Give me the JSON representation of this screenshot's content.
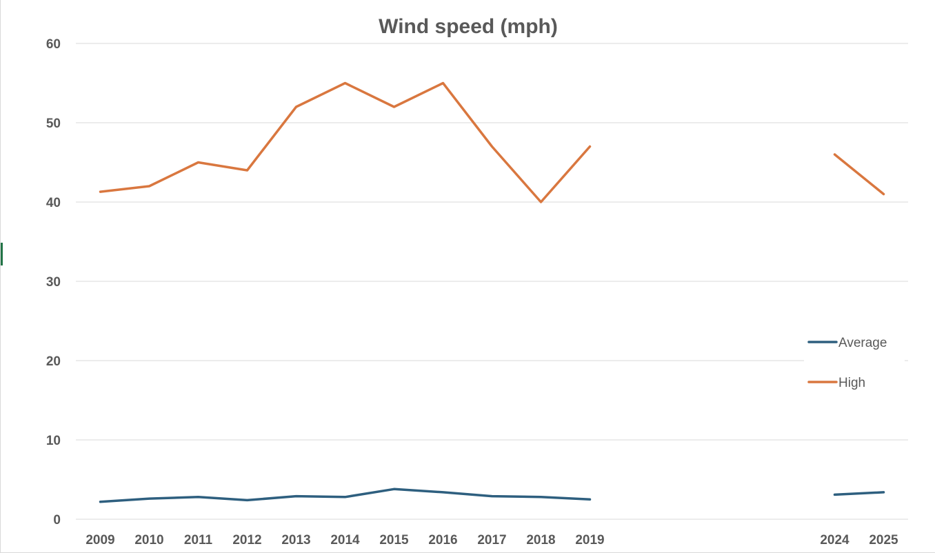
{
  "chart_data": {
    "type": "line",
    "title": "Wind speed (mph)",
    "xlabel": "",
    "ylabel": "",
    "categories": [
      "2009",
      "2010",
      "2011",
      "2012",
      "2013",
      "2014",
      "2015",
      "2016",
      "2017",
      "2018",
      "2019",
      "",
      "",
      "",
      "",
      "2024",
      "2025"
    ],
    "ylim": [
      0,
      60
    ],
    "yticks": [
      0,
      10,
      20,
      30,
      40,
      50,
      60
    ],
    "grid": true,
    "legend_position": "right",
    "series": [
      {
        "name": "Average",
        "color": "#2e5f7f",
        "values": [
          2.2,
          2.6,
          2.8,
          2.4,
          2.9,
          2.8,
          3.8,
          3.4,
          2.9,
          2.8,
          2.5,
          null,
          null,
          null,
          null,
          3.1,
          3.4
        ]
      },
      {
        "name": "High",
        "color": "#d9773f",
        "values": [
          41.3,
          42,
          45,
          44,
          52,
          55,
          52,
          55,
          47,
          40,
          47,
          null,
          null,
          null,
          null,
          46,
          41
        ]
      }
    ]
  },
  "colors": {
    "gridline": "#d9d9d9",
    "text": "#595959",
    "frame_accent": "#217346"
  }
}
